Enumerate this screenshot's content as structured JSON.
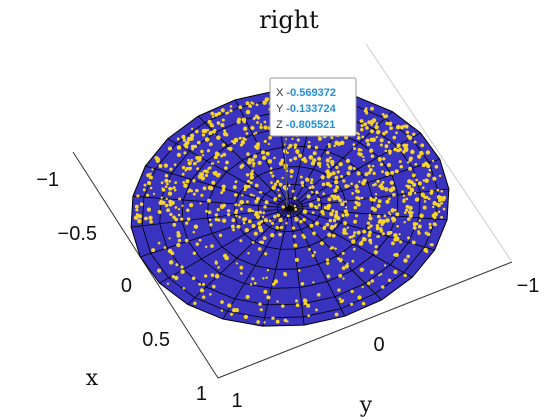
{
  "chart_data": {
    "type": "scatter",
    "title": "right",
    "xlabel": "x",
    "ylabel": "y",
    "x_ticks": [
      "1",
      "0.5",
      "0",
      "−0.5",
      "−1"
    ],
    "y_ticks": [
      "1",
      "0",
      "−1"
    ],
    "grid": false,
    "colors": {
      "surface": "#3a33bf",
      "points": "#f5d329",
      "mesh": "#000000"
    },
    "datatip": {
      "x_label": "X",
      "x_value": "-0.569372",
      "y_label": "Y",
      "y_value": "-0.133724",
      "z_label": "Z",
      "z_value": "-0.805521"
    }
  }
}
